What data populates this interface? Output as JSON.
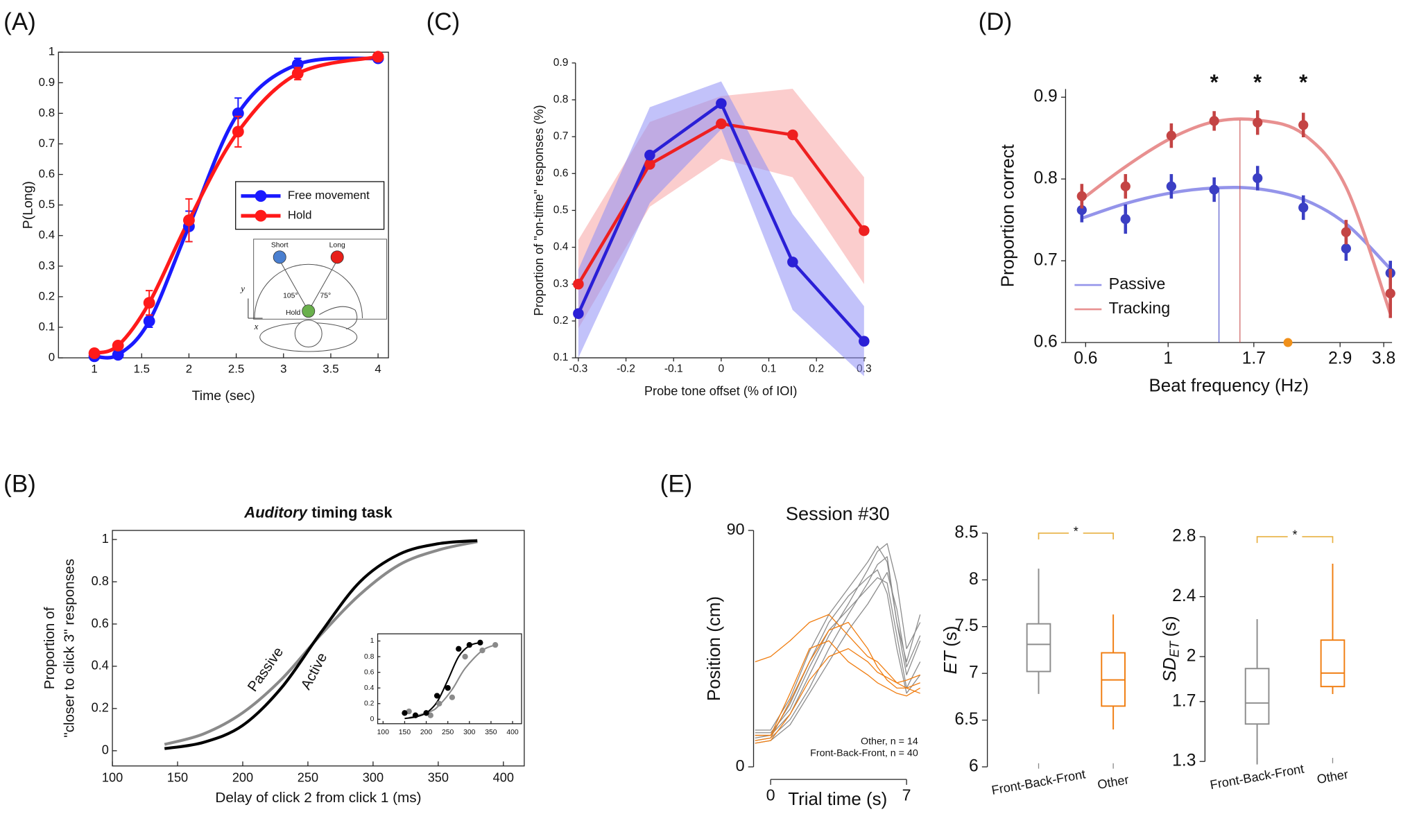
{
  "chart_data": [
    {
      "type": "line",
      "panel_label": "(A)",
      "ylabel": "P(Long)",
      "xlabel": "Time (sec)",
      "smooth": true,
      "markers": true,
      "x": [
        1,
        1.25,
        1.58,
        2,
        2.52,
        3.15,
        4
      ],
      "series": [
        {
          "name": "Free movement",
          "color": "#1a1aff",
          "values": [
            0.005,
            0.01,
            0.12,
            0.43,
            0.8,
            0.96,
            0.98
          ],
          "errors": [
            0.005,
            0.005,
            0.02,
            0.05,
            0.05,
            0.02,
            0.01
          ]
        },
        {
          "name": "Hold",
          "color": "#ff1a1a",
          "values": [
            0.015,
            0.04,
            0.18,
            0.45,
            0.74,
            0.93,
            0.985
          ],
          "errors": [
            0.01,
            0.01,
            0.04,
            0.07,
            0.05,
            0.02,
            0.01
          ]
        }
      ],
      "xlim": [
        0.62,
        4.11
      ],
      "ylim": [
        0,
        1
      ],
      "xticks": [
        1,
        1.5,
        2,
        2.5,
        3,
        3.5,
        4
      ],
      "yticks": [
        0,
        0.1,
        0.2,
        0.3,
        0.4,
        0.5,
        0.6,
        0.7,
        0.8,
        0.9,
        1
      ],
      "legend": "center-right",
      "inset_labels": {
        "short": "Short",
        "long": "Long",
        "angle_left": "105°",
        "angle_right": "75°",
        "hold": "Hold",
        "y_axis": "y",
        "x_axis": "x"
      }
    },
    {
      "type": "line",
      "panel_label": "(B)",
      "title_emphasis": "Auditory",
      "title": "timing task",
      "ylabel": [
        "Proportion of",
        "\"closer to click 3\" responses"
      ],
      "xlabel": "Delay of click 2 from click 1 (ms)",
      "smooth": true,
      "markers": false,
      "series": [
        {
          "name": "Passive",
          "color": "#8a8a8a",
          "x": [
            140,
            170,
            200,
            230,
            260,
            290,
            320,
            350,
            380
          ],
          "values": [
            0.03,
            0.08,
            0.18,
            0.34,
            0.55,
            0.74,
            0.88,
            0.95,
            0.99
          ]
        },
        {
          "name": "Active",
          "color": "#000000",
          "x": [
            140,
            170,
            200,
            230,
            260,
            290,
            320,
            350,
            380
          ],
          "values": [
            0.01,
            0.04,
            0.12,
            0.3,
            0.56,
            0.8,
            0.93,
            0.98,
            0.995
          ]
        }
      ],
      "xlim": [
        100,
        416
      ],
      "ylim": [
        -0.072,
        1.043
      ],
      "xticks": [
        100,
        150,
        200,
        250,
        300,
        350,
        400
      ],
      "yticks": [
        0,
        0.2,
        0.4,
        0.6,
        0.8,
        1
      ]
    },
    {
      "type": "line",
      "smooth": true,
      "markers": true,
      "series": [
        {
          "color": "#8a8a8a",
          "x": [
            160,
            210,
            230,
            260,
            290,
            330,
            360
          ],
          "values": [
            0.1,
            0.05,
            0.2,
            0.28,
            0.8,
            0.88,
            0.95
          ],
          "fit": [
            0.02,
            0.1,
            0.18,
            0.38,
            0.65,
            0.88,
            0.95
          ]
        },
        {
          "color": "#000000",
          "x": [
            150,
            175,
            200,
            225,
            250,
            275,
            300,
            325
          ],
          "values": [
            0.08,
            0.05,
            0.08,
            0.3,
            0.4,
            0.9,
            0.95,
            0.98
          ],
          "fit": [
            0.01,
            0.03,
            0.08,
            0.22,
            0.5,
            0.8,
            0.94,
            0.98
          ]
        }
      ],
      "xlim": [
        87.5,
        420.8
      ],
      "ylim": [
        -0.057,
        1.092
      ],
      "xticks": [
        100,
        150,
        200,
        250,
        300,
        350,
        400
      ],
      "yticks": [
        0,
        0.2,
        0.4,
        0.6,
        0.8,
        1
      ]
    },
    {
      "type": "line",
      "panel_label": "(C)",
      "ylabel": "Proportion of \"on-time\" responses (%)",
      "xlabel": "Probe tone offset (% of IOI)",
      "markers": true,
      "x": [
        -0.3,
        -0.15,
        0,
        0.15,
        0.3
      ],
      "series": [
        {
          "color": "#ee2020",
          "band_color": "#f8a4a4",
          "values": [
            0.3,
            0.625,
            0.735,
            0.705,
            0.445
          ],
          "lower": [
            0.18,
            0.51,
            0.64,
            0.59,
            0.3
          ],
          "upper": [
            0.42,
            0.74,
            0.81,
            0.83,
            0.59
          ]
        },
        {
          "color": "#2a1fd6",
          "band_color": "#9090f5",
          "values": [
            0.22,
            0.65,
            0.79,
            0.36,
            0.145
          ],
          "lower": [
            0.1,
            0.52,
            0.72,
            0.23,
            0.05
          ],
          "upper": [
            0.34,
            0.78,
            0.85,
            0.49,
            0.24
          ]
        }
      ],
      "xlim": [
        -0.306,
        0.304
      ],
      "ylim": [
        0.1,
        0.9
      ],
      "xticks": [
        -0.3,
        -0.2,
        -0.1,
        0,
        0.1,
        0.2,
        0.3
      ],
      "yticks": [
        0.1,
        0.2,
        0.3,
        0.4,
        0.5,
        0.6,
        0.7,
        0.8,
        0.9
      ]
    },
    {
      "type": "line",
      "panel_label": "(D)",
      "ylabel": "Proportion correct",
      "xlabel": "Beat frequency (Hz)",
      "log_x": true,
      "markers": true,
      "smooth": true,
      "x": [
        0.586,
        0.768,
        1.02,
        1.33,
        1.74,
        2.31,
        3.01,
        3.96
      ],
      "series": [
        {
          "name": "Passive",
          "color": "#3b3fc4",
          "fit_color": "#9494ea",
          "values": [
            0.762,
            0.751,
            0.791,
            0.787,
            0.801,
            0.765,
            0.715,
            0.685
          ],
          "errors": [
            0.015,
            0.018,
            0.015,
            0.015,
            0.015,
            0.015,
            0.015,
            0.015
          ],
          "fit": [
            0.752,
            0.77,
            0.783,
            0.789,
            0.788,
            0.775,
            0.745,
            0.69
          ],
          "peak": 1.37
        },
        {
          "name": "Tracking",
          "color": "#c44444",
          "fit_color": "#e89090",
          "values": [
            0.779,
            0.791,
            0.853,
            0.871,
            0.869,
            0.866,
            0.735,
            0.66
          ],
          "errors": [
            0.015,
            0.015,
            0.015,
            0.012,
            0.015,
            0.015,
            0.015,
            0.03
          ],
          "fit": [
            0.775,
            0.815,
            0.85,
            0.87,
            0.872,
            0.855,
            0.79,
            0.635
          ],
          "peak": 1.56
        }
      ],
      "annotations": [
        {
          "text": "*",
          "x": 1.33
        },
        {
          "text": "*",
          "x": 1.74
        },
        {
          "text": "*",
          "x": 2.31
        }
      ],
      "highlight": {
        "x": 2.1,
        "y": 0.6,
        "color": "#f0901a"
      },
      "xlim": [
        0.53,
        4.0
      ],
      "ylim": [
        0.6,
        0.91
      ],
      "xticks": [
        0.6,
        1,
        1.7,
        2.9,
        3.8
      ],
      "yticks": [
        0.6,
        0.7,
        0.8,
        0.9
      ],
      "legend": "lower-left"
    },
    {
      "type": "line",
      "panel_label": "(E)",
      "title": "Session #30",
      "ylabel": "Position (cm)",
      "xlabel": "Trial time (s)",
      "x": [
        -0.8,
        0,
        1,
        2,
        3,
        4,
        5,
        5.5,
        6,
        6.5,
        7,
        7.7
      ],
      "series": [
        {
          "color": "#8c8c8c",
          "values": [
            12,
            12,
            20,
            35,
            50,
            62,
            75,
            82,
            85,
            70,
            45,
            55
          ]
        },
        {
          "color": "#8c8c8c",
          "values": [
            10,
            11,
            18,
            30,
            45,
            58,
            70,
            77,
            80,
            55,
            35,
            48
          ]
        },
        {
          "color": "#8c8c8c",
          "values": [
            13,
            13,
            22,
            38,
            52,
            60,
            68,
            72,
            70,
            50,
            30,
            40
          ]
        },
        {
          "color": "#8c8c8c",
          "values": [
            9,
            10,
            16,
            28,
            40,
            52,
            62,
            68,
            74,
            60,
            38,
            50
          ]
        },
        {
          "color": "#8c8c8c",
          "values": [
            11,
            12,
            24,
            40,
            55,
            65,
            72,
            75,
            66,
            45,
            28,
            35
          ]
        },
        {
          "color": "#8c8c8c",
          "values": [
            14,
            14,
            26,
            44,
            58,
            68,
            78,
            84,
            78,
            55,
            40,
            58
          ]
        },
        {
          "color": "#f07d10",
          "values": [
            10,
            11,
            25,
            40,
            52,
            55,
            45,
            38,
            33,
            30,
            30,
            32
          ]
        },
        {
          "color": "#f07d10",
          "values": [
            12,
            12,
            28,
            45,
            48,
            40,
            35,
            32,
            30,
            28,
            27,
            30
          ]
        },
        {
          "color": "#f07d10",
          "values": [
            9,
            10,
            20,
            33,
            42,
            45,
            40,
            36,
            34,
            32,
            33,
            35
          ]
        },
        {
          "color": "#f07d10",
          "values": [
            40,
            42,
            48,
            55,
            58,
            50,
            42,
            40,
            36,
            32,
            30,
            28
          ]
        }
      ],
      "legend": "lower-right",
      "legend_entries": [
        {
          "label": "Other, n = 14",
          "color": "#f07d10"
        },
        {
          "label": "Front-Back-Front, n = 40",
          "color": "#6e6e6e"
        }
      ],
      "xlim": [
        -0.88,
        7.78
      ],
      "ylim": [
        0,
        90
      ],
      "xticks": [
        0,
        7
      ],
      "yticks": [
        0,
        90
      ]
    },
    {
      "type": "box",
      "ylabel": "ET",
      "ylabel_unit": "(s)",
      "boxes": [
        {
          "name": "Front-Back-Front",
          "color": "#8c8c8c",
          "whisker_low": 6.78,
          "q1": 7.02,
          "median": 7.31,
          "q3": 7.53,
          "whisker_high": 8.12
        },
        {
          "name": "Other",
          "color": "#f07d10",
          "whisker_low": 6.4,
          "q1": 6.65,
          "median": 6.93,
          "q3": 7.22,
          "whisker_high": 7.63
        }
      ],
      "significance": "*",
      "sig_color": "#e8b040",
      "ylim": [
        6,
        8.5
      ],
      "yticks": [
        6,
        6.5,
        7,
        7.5,
        8,
        8.5
      ]
    },
    {
      "type": "box",
      "ylabel": "SD",
      "ylabel_sub": "ET",
      "ylabel_unit": "(s)",
      "boxes": [
        {
          "name": "Front-Back-Front",
          "color": "#8c8c8c",
          "whisker_low": 1.28,
          "q1": 1.55,
          "median": 1.69,
          "q3": 1.92,
          "whisker_high": 2.25
        },
        {
          "name": "Other",
          "color": "#f07d10",
          "whisker_low": 1.75,
          "q1": 1.8,
          "median": 1.89,
          "q3": 2.11,
          "whisker_high": 2.62
        }
      ],
      "significance": "*",
      "sig_color": "#e8b040",
      "ylim": [
        1.3,
        2.8
      ],
      "yticks": [
        1.3,
        1.7,
        2,
        2.4,
        2.8
      ]
    }
  ]
}
